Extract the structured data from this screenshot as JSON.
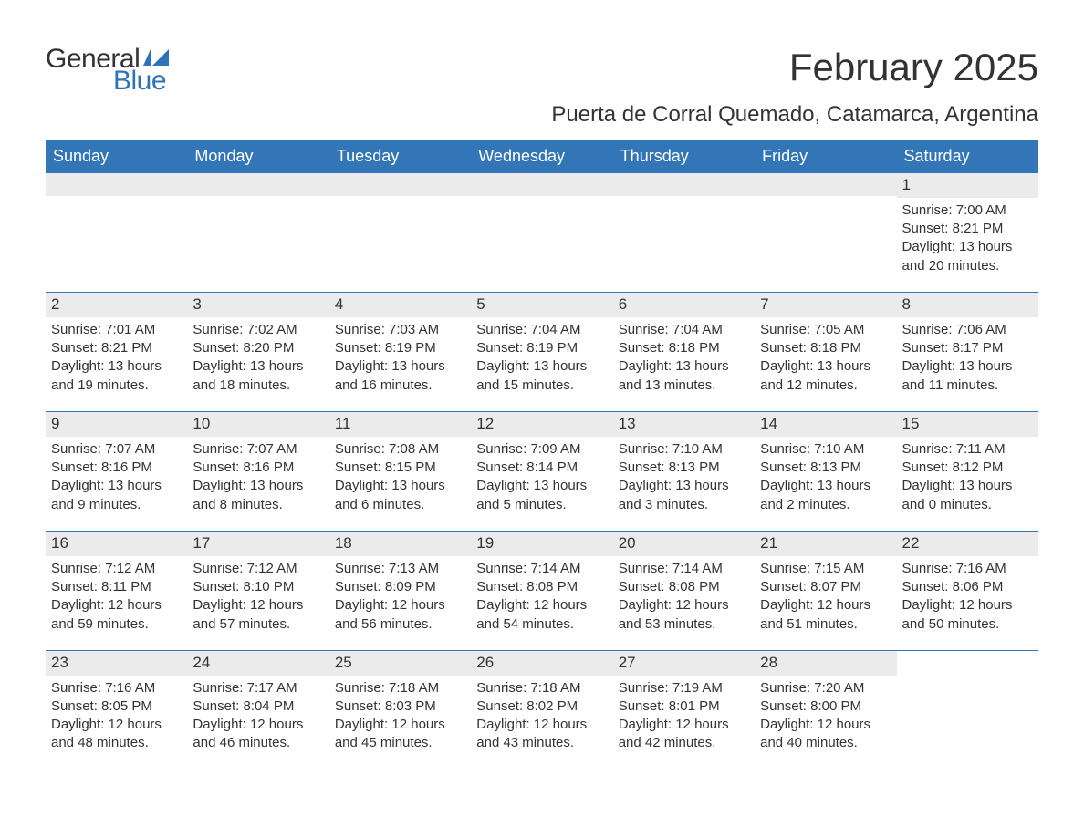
{
  "logo": {
    "word1": "General",
    "word2": "Blue",
    "word1_color": "#333333",
    "word2_color": "#2d73b8",
    "mark_color": "#2d73b8"
  },
  "title": "February 2025",
  "subtitle": "Puerta de Corral Quemado, Catamarca, Argentina",
  "colors": {
    "header_bg": "#3376b8",
    "header_fg": "#ffffff",
    "daynum_bg": "#ebebeb",
    "rule": "#3376b8",
    "text": "#333333",
    "background": "#ffffff"
  },
  "day_headers": [
    "Sunday",
    "Monday",
    "Tuesday",
    "Wednesday",
    "Thursday",
    "Friday",
    "Saturday"
  ],
  "weeks": [
    [
      {
        "empty": true
      },
      {
        "empty": true
      },
      {
        "empty": true
      },
      {
        "empty": true
      },
      {
        "empty": true
      },
      {
        "empty": true
      },
      {
        "day": "1",
        "sunrise": "Sunrise: 7:00 AM",
        "sunset": "Sunset: 8:21 PM",
        "daylight1": "Daylight: 13 hours",
        "daylight2": "and 20 minutes."
      }
    ],
    [
      {
        "day": "2",
        "sunrise": "Sunrise: 7:01 AM",
        "sunset": "Sunset: 8:21 PM",
        "daylight1": "Daylight: 13 hours",
        "daylight2": "and 19 minutes."
      },
      {
        "day": "3",
        "sunrise": "Sunrise: 7:02 AM",
        "sunset": "Sunset: 8:20 PM",
        "daylight1": "Daylight: 13 hours",
        "daylight2": "and 18 minutes."
      },
      {
        "day": "4",
        "sunrise": "Sunrise: 7:03 AM",
        "sunset": "Sunset: 8:19 PM",
        "daylight1": "Daylight: 13 hours",
        "daylight2": "and 16 minutes."
      },
      {
        "day": "5",
        "sunrise": "Sunrise: 7:04 AM",
        "sunset": "Sunset: 8:19 PM",
        "daylight1": "Daylight: 13 hours",
        "daylight2": "and 15 minutes."
      },
      {
        "day": "6",
        "sunrise": "Sunrise: 7:04 AM",
        "sunset": "Sunset: 8:18 PM",
        "daylight1": "Daylight: 13 hours",
        "daylight2": "and 13 minutes."
      },
      {
        "day": "7",
        "sunrise": "Sunrise: 7:05 AM",
        "sunset": "Sunset: 8:18 PM",
        "daylight1": "Daylight: 13 hours",
        "daylight2": "and 12 minutes."
      },
      {
        "day": "8",
        "sunrise": "Sunrise: 7:06 AM",
        "sunset": "Sunset: 8:17 PM",
        "daylight1": "Daylight: 13 hours",
        "daylight2": "and 11 minutes."
      }
    ],
    [
      {
        "day": "9",
        "sunrise": "Sunrise: 7:07 AM",
        "sunset": "Sunset: 8:16 PM",
        "daylight1": "Daylight: 13 hours",
        "daylight2": "and 9 minutes."
      },
      {
        "day": "10",
        "sunrise": "Sunrise: 7:07 AM",
        "sunset": "Sunset: 8:16 PM",
        "daylight1": "Daylight: 13 hours",
        "daylight2": "and 8 minutes."
      },
      {
        "day": "11",
        "sunrise": "Sunrise: 7:08 AM",
        "sunset": "Sunset: 8:15 PM",
        "daylight1": "Daylight: 13 hours",
        "daylight2": "and 6 minutes."
      },
      {
        "day": "12",
        "sunrise": "Sunrise: 7:09 AM",
        "sunset": "Sunset: 8:14 PM",
        "daylight1": "Daylight: 13 hours",
        "daylight2": "and 5 minutes."
      },
      {
        "day": "13",
        "sunrise": "Sunrise: 7:10 AM",
        "sunset": "Sunset: 8:13 PM",
        "daylight1": "Daylight: 13 hours",
        "daylight2": "and 3 minutes."
      },
      {
        "day": "14",
        "sunrise": "Sunrise: 7:10 AM",
        "sunset": "Sunset: 8:13 PM",
        "daylight1": "Daylight: 13 hours",
        "daylight2": "and 2 minutes."
      },
      {
        "day": "15",
        "sunrise": "Sunrise: 7:11 AM",
        "sunset": "Sunset: 8:12 PM",
        "daylight1": "Daylight: 13 hours",
        "daylight2": "and 0 minutes."
      }
    ],
    [
      {
        "day": "16",
        "sunrise": "Sunrise: 7:12 AM",
        "sunset": "Sunset: 8:11 PM",
        "daylight1": "Daylight: 12 hours",
        "daylight2": "and 59 minutes."
      },
      {
        "day": "17",
        "sunrise": "Sunrise: 7:12 AM",
        "sunset": "Sunset: 8:10 PM",
        "daylight1": "Daylight: 12 hours",
        "daylight2": "and 57 minutes."
      },
      {
        "day": "18",
        "sunrise": "Sunrise: 7:13 AM",
        "sunset": "Sunset: 8:09 PM",
        "daylight1": "Daylight: 12 hours",
        "daylight2": "and 56 minutes."
      },
      {
        "day": "19",
        "sunrise": "Sunrise: 7:14 AM",
        "sunset": "Sunset: 8:08 PM",
        "daylight1": "Daylight: 12 hours",
        "daylight2": "and 54 minutes."
      },
      {
        "day": "20",
        "sunrise": "Sunrise: 7:14 AM",
        "sunset": "Sunset: 8:08 PM",
        "daylight1": "Daylight: 12 hours",
        "daylight2": "and 53 minutes."
      },
      {
        "day": "21",
        "sunrise": "Sunrise: 7:15 AM",
        "sunset": "Sunset: 8:07 PM",
        "daylight1": "Daylight: 12 hours",
        "daylight2": "and 51 minutes."
      },
      {
        "day": "22",
        "sunrise": "Sunrise: 7:16 AM",
        "sunset": "Sunset: 8:06 PM",
        "daylight1": "Daylight: 12 hours",
        "daylight2": "and 50 minutes."
      }
    ],
    [
      {
        "day": "23",
        "sunrise": "Sunrise: 7:16 AM",
        "sunset": "Sunset: 8:05 PM",
        "daylight1": "Daylight: 12 hours",
        "daylight2": "and 48 minutes."
      },
      {
        "day": "24",
        "sunrise": "Sunrise: 7:17 AM",
        "sunset": "Sunset: 8:04 PM",
        "daylight1": "Daylight: 12 hours",
        "daylight2": "and 46 minutes."
      },
      {
        "day": "25",
        "sunrise": "Sunrise: 7:18 AM",
        "sunset": "Sunset: 8:03 PM",
        "daylight1": "Daylight: 12 hours",
        "daylight2": "and 45 minutes."
      },
      {
        "day": "26",
        "sunrise": "Sunrise: 7:18 AM",
        "sunset": "Sunset: 8:02 PM",
        "daylight1": "Daylight: 12 hours",
        "daylight2": "and 43 minutes."
      },
      {
        "day": "27",
        "sunrise": "Sunrise: 7:19 AM",
        "sunset": "Sunset: 8:01 PM",
        "daylight1": "Daylight: 12 hours",
        "daylight2": "and 42 minutes."
      },
      {
        "day": "28",
        "sunrise": "Sunrise: 7:20 AM",
        "sunset": "Sunset: 8:00 PM",
        "daylight1": "Daylight: 12 hours",
        "daylight2": "and 40 minutes."
      },
      {
        "empty": true,
        "trailing": true
      }
    ]
  ]
}
